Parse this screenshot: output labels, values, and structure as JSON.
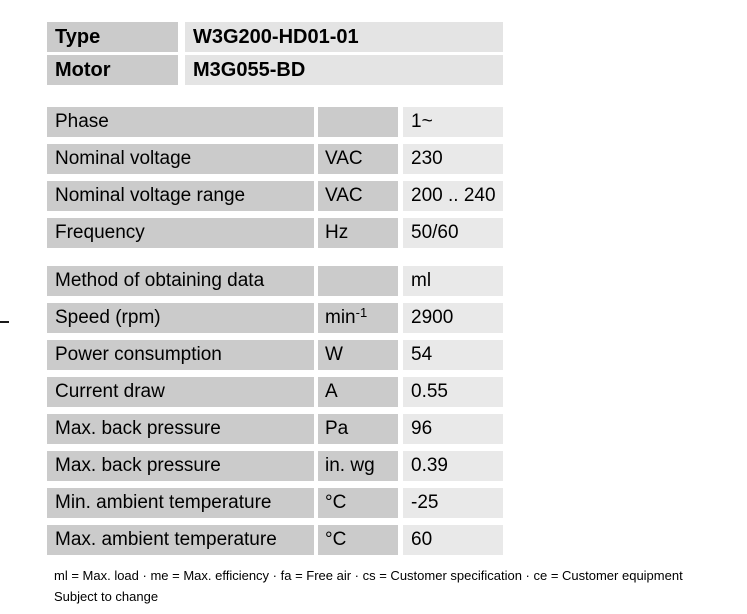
{
  "header_table": {
    "rows": [
      {
        "label": "Type",
        "value": "W3G200-HD01-01"
      },
      {
        "label": "Motor",
        "value": "M3G055-BD"
      }
    ]
  },
  "spec_table": {
    "sections": [
      {
        "rows": [
          {
            "label": "Phase",
            "unit": "",
            "value": "1~"
          },
          {
            "label": "Nominal voltage",
            "unit": "VAC",
            "value": "230"
          },
          {
            "label": "Nominal voltage range",
            "unit": "VAC",
            "value": "200 .. 240"
          },
          {
            "label": "Frequency",
            "unit": "Hz",
            "value": "50/60"
          }
        ]
      },
      {
        "rows": [
          {
            "label": "Method of obtaining data",
            "unit": "",
            "value": "ml"
          },
          {
            "label": "Speed (rpm)",
            "unit": "min",
            "unit_sup": "-1",
            "value": "2900"
          },
          {
            "label": "Power consumption",
            "unit": "W",
            "value": "54"
          },
          {
            "label": "Current draw",
            "unit": "A",
            "value": "0.55"
          },
          {
            "label": "Max. back pressure",
            "unit": "Pa",
            "value": "96"
          },
          {
            "label": "Max. back pressure",
            "unit": "in. wg",
            "value": "0.39"
          },
          {
            "label": "Min. ambient temperature",
            "unit": "°C",
            "value": "-25"
          },
          {
            "label": "Max. ambient temperature",
            "unit": "°C",
            "value": "60"
          }
        ]
      }
    ]
  },
  "footnotes": {
    "legend": "ml = Max. load · me = Max. efficiency · fa = Free air · cs = Customer specification · ce = Customer equipment",
    "note": "Subject to change"
  },
  "colors": {
    "label_cell_bg": "#cbcbcb",
    "value_cell_bg": "#e9e9e9",
    "header_value_bg": "#e4e4e4",
    "text": "#000000"
  }
}
